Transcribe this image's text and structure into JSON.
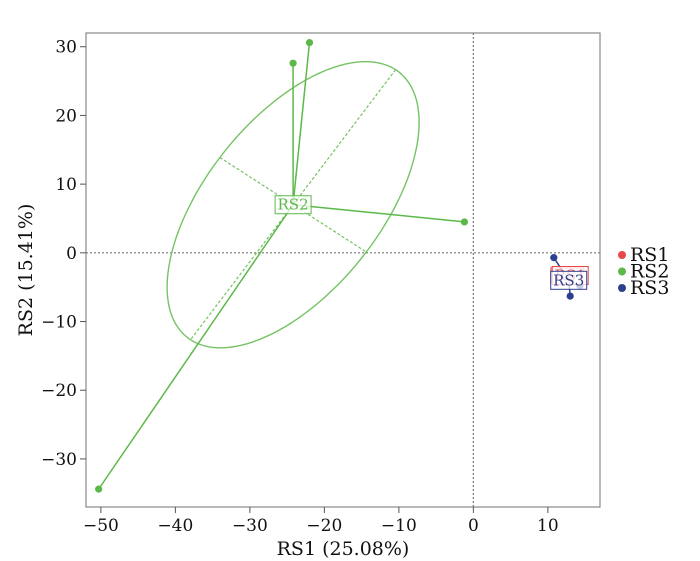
{
  "chart_data": {
    "type": "scatter",
    "title": "",
    "xlabel": "RS1 (25.08%)",
    "ylabel": "RS2 (15.41%)",
    "xlim": [
      -52,
      17
    ],
    "ylim": [
      -37,
      32
    ],
    "xticks": [
      -50,
      -40,
      -30,
      -20,
      -10,
      0,
      10
    ],
    "yticks": [
      -30,
      -20,
      -10,
      0,
      10,
      20,
      30
    ],
    "x_tick_labels": [
      "−50",
      "−40",
      "−30",
      "−20",
      "−10",
      "0",
      "10"
    ],
    "y_tick_labels": [
      "−30",
      "−20",
      "−10",
      "0",
      "10",
      "20",
      "30"
    ],
    "reference_lines": {
      "x": 0,
      "y": 0,
      "style": "dotted"
    },
    "grid": false,
    "legend": {
      "position": "right"
    },
    "series": [
      {
        "name": "RS1",
        "color": "#e8474a",
        "centroid": [
          13.0,
          -3.3
        ],
        "points": [],
        "ellipse": {
          "cx": 12.6,
          "cy": -3.3,
          "half_width": 2.2,
          "half_height": 1.1,
          "angle_deg": 0
        }
      },
      {
        "name": "RS2",
        "color": "#5db84a",
        "centroid": [
          -24.2,
          7.0
        ],
        "points": [
          [
            -24.2,
            27.6
          ],
          [
            -22.0,
            30.6
          ],
          [
            -1.2,
            4.5
          ],
          [
            -50.3,
            -34.4
          ]
        ],
        "ellipse": {
          "cx": -24.2,
          "cy": 7.0,
          "semi_major": 24.0,
          "semi_minor": 12.0,
          "angle_deg": 55
        }
      },
      {
        "name": "RS3",
        "color": "#2e3f8f",
        "centroid": [
          12.8,
          -4.0
        ],
        "points": [
          [
            10.8,
            -0.7
          ],
          [
            13.0,
            -6.3
          ],
          [
            14.3,
            -4.8
          ]
        ],
        "ellipse": null
      }
    ],
    "centroid_labels": [
      {
        "text": "RS1",
        "series": "RS1"
      },
      {
        "text": "RS2",
        "series": "RS2"
      },
      {
        "text": "RS3",
        "series": "RS3"
      }
    ]
  }
}
